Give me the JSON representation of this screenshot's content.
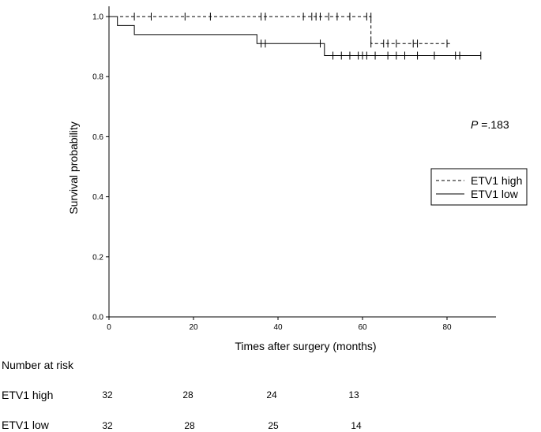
{
  "chart_data": {
    "type": "line",
    "subtype": "kaplan-meier",
    "xlabel": "Times after surgery (months)",
    "ylabel": "Survival probability",
    "xlim": [
      0,
      92
    ],
    "ylim": [
      0,
      1.0
    ],
    "xticks": [
      0,
      20,
      40,
      60,
      80
    ],
    "yticks": [
      "0.0",
      "0.2",
      "0.4",
      "0.6",
      "0.8",
      "1.0"
    ],
    "annotation": {
      "italic": "P",
      "text": " =.183"
    },
    "legend_position": "right",
    "series": [
      {
        "name": "ETV1 high",
        "style": "dashed",
        "steps": [
          [
            0,
            1.0
          ],
          [
            62,
            1.0
          ],
          [
            62,
            0.91
          ],
          [
            81,
            0.91
          ]
        ],
        "censored": [
          [
            6,
            1.0
          ],
          [
            10,
            1.0
          ],
          [
            18,
            1.0
          ],
          [
            24,
            1.0
          ],
          [
            36,
            1.0
          ],
          [
            37,
            1.0
          ],
          [
            46,
            1.0
          ],
          [
            48,
            1.0
          ],
          [
            49,
            1.0
          ],
          [
            50,
            1.0
          ],
          [
            52,
            1.0
          ],
          [
            54,
            1.0
          ],
          [
            57,
            1.0
          ],
          [
            61,
            1.0
          ],
          [
            62,
            1.0
          ],
          [
            62,
            0.91
          ],
          [
            65,
            0.91
          ],
          [
            66,
            0.91
          ],
          [
            68,
            0.91
          ],
          [
            72,
            0.91
          ],
          [
            73,
            0.91
          ],
          [
            80,
            0.91
          ]
        ]
      },
      {
        "name": "ETV1 low",
        "style": "solid",
        "steps": [
          [
            0,
            1.0
          ],
          [
            2,
            1.0
          ],
          [
            2,
            0.97
          ],
          [
            6,
            0.97
          ],
          [
            6,
            0.94
          ],
          [
            35,
            0.94
          ],
          [
            35,
            0.91
          ],
          [
            51,
            0.91
          ],
          [
            51,
            0.87
          ],
          [
            88,
            0.87
          ]
        ],
        "censored": [
          [
            36,
            0.91
          ],
          [
            37,
            0.91
          ],
          [
            50,
            0.91
          ],
          [
            53,
            0.87
          ],
          [
            55,
            0.87
          ],
          [
            57,
            0.87
          ],
          [
            59,
            0.87
          ],
          [
            60,
            0.87
          ],
          [
            61,
            0.87
          ],
          [
            63,
            0.87
          ],
          [
            66,
            0.87
          ],
          [
            68,
            0.87
          ],
          [
            70,
            0.87
          ],
          [
            73,
            0.87
          ],
          [
            77,
            0.87
          ],
          [
            82,
            0.87
          ],
          [
            83,
            0.87
          ],
          [
            88,
            0.87
          ]
        ]
      }
    ]
  },
  "risk_table": {
    "title": "Number at risk",
    "rows": [
      {
        "label": "ETV1 high",
        "values": [
          "32",
          "28",
          "24",
          "13"
        ]
      },
      {
        "label": "ETV1 low",
        "values": [
          "32",
          "28",
          "25",
          "14"
        ]
      }
    ]
  }
}
